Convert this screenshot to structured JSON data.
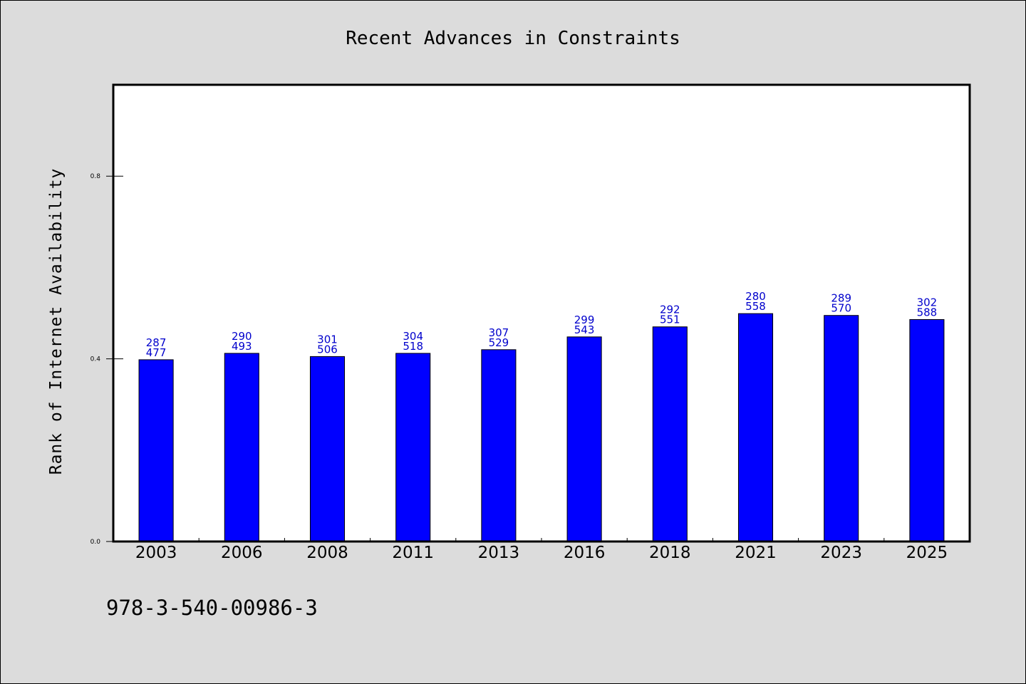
{
  "chart_data": {
    "type": "bar",
    "title": "Recent Advances in Constraints",
    "xlabel": "",
    "ylabel": "Rank of Internet Availability",
    "categories": [
      "2003",
      "2006",
      "2008",
      "2011",
      "2013",
      "2016",
      "2018",
      "2021",
      "2023",
      "2025"
    ],
    "values": [
      0.398,
      0.412,
      0.405,
      0.412,
      0.42,
      0.448,
      0.47,
      0.499,
      0.495,
      0.486
    ],
    "data_labels": [
      [
        "287",
        "477"
      ],
      [
        "290",
        "493"
      ],
      [
        "301",
        "506"
      ],
      [
        "304",
        "518"
      ],
      [
        "307",
        "529"
      ],
      [
        "299",
        "543"
      ],
      [
        "292",
        "551"
      ],
      [
        "280",
        "558"
      ],
      [
        "289",
        "570"
      ],
      [
        "302",
        "588"
      ]
    ],
    "yticks": [
      0.0,
      0.4,
      0.8
    ],
    "ytick_labels": [
      "0.0",
      "0.4",
      "0.8"
    ],
    "ylim": [
      0,
      1.0
    ],
    "grid": false,
    "legend": "none",
    "colors": {
      "bar": "#0000ff",
      "bar_edge": "#000000",
      "data_label": "#0000cc",
      "background": "#dcdcdc",
      "plot_background": "#ffffff"
    }
  },
  "footer": {
    "isbn": "978-3-540-00986-3"
  }
}
